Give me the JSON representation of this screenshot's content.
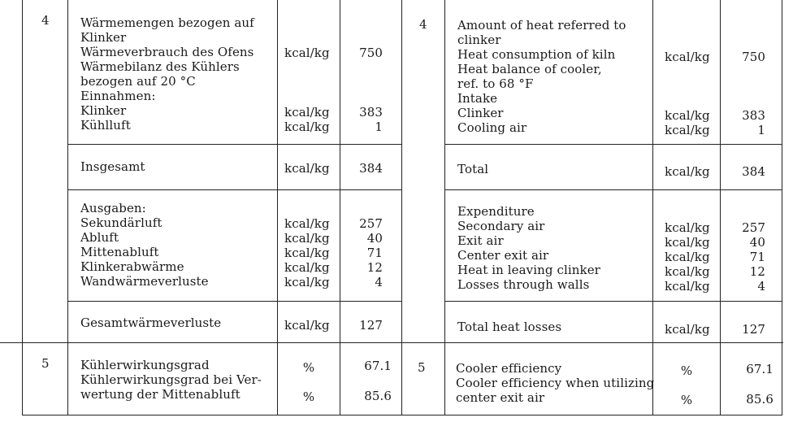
{
  "rows": {
    "row4": {
      "num_de": "4",
      "num_en": "4",
      "de_lines": [
        "Wärmemengen bezogen auf",
        "Klinker",
        "Wärmeverbrauch des Ofens",
        "Wärmebilanz des Kühlers",
        "bezogen auf 20 °C",
        "Einnahmen:",
        "Klinker",
        "Kühlluft"
      ],
      "de_units": [
        "kcal/kg",
        "kcal/kg",
        "kcal/kg"
      ],
      "de_values": [
        "750",
        "383",
        "1"
      ],
      "en_lines": [
        "Amount of heat referred to",
        "clinker",
        "Heat consumption of kiln",
        "Heat balance of cooler,",
        "ref. to 68 °F",
        "Intake",
        "Clinker",
        "Cooling air"
      ],
      "en_units": [
        "kcal/kg",
        "kcal/kg",
        "kcal/kg"
      ],
      "en_values": [
        "750",
        "383",
        "1"
      ]
    },
    "total": {
      "de_label": "Insgesamt",
      "de_unit": "kcal/kg",
      "de_value": "384",
      "en_label": "Total",
      "en_unit": "kcal/kg",
      "en_value": "384"
    },
    "expenditure": {
      "de_heading": "Ausgaben:",
      "de_items": [
        {
          "label": "Sekundärluft",
          "unit": "kcal/kg",
          "value": "257"
        },
        {
          "label": "Abluft",
          "unit": "kcal/kg",
          "value": "40"
        },
        {
          "label": "Mittenabluft",
          "unit": "kcal/kg",
          "value": "71"
        },
        {
          "label": "Klinkerabwärme",
          "unit": "kcal/kg",
          "value": "12"
        },
        {
          "label": "Wandwärmeverluste",
          "unit": "kcal/kg",
          "value": "4"
        }
      ],
      "en_heading": "Expenditure",
      "en_items": [
        {
          "label": "Secondary air",
          "unit": "kcal/kg",
          "value": "257"
        },
        {
          "label": "Exit air",
          "unit": "kcal/kg",
          "value": "40"
        },
        {
          "label": "Center exit air",
          "unit": "kcal/kg",
          "value": "71"
        },
        {
          "label": "Heat in leaving clinker",
          "unit": "kcal/kg",
          "value": "12"
        },
        {
          "label": "Losses through walls",
          "unit": "kcal/kg",
          "value": "4"
        }
      ]
    },
    "total_losses": {
      "de_label": "Gesamtwärmeverluste",
      "de_unit": "kcal/kg",
      "de_value": "127",
      "en_label": "Total heat losses",
      "en_unit": "kcal/kg",
      "en_value": "127"
    },
    "row5": {
      "num_de": "5",
      "num_en": "5",
      "de_lines": [
        "Kühlerwirkungsgrad",
        "Kühlerwirkungsgrad bei Ver-",
        "wertung der Mittenabluft"
      ],
      "de_units": [
        "%",
        "%"
      ],
      "de_values": [
        "67.1",
        "85.6"
      ],
      "en_lines": [
        "Cooler efficiency",
        "Cooler efficiency when utilizing",
        "center exit air"
      ],
      "en_units": [
        "%",
        "%"
      ],
      "en_values": [
        "67.1",
        "85.6"
      ]
    }
  }
}
